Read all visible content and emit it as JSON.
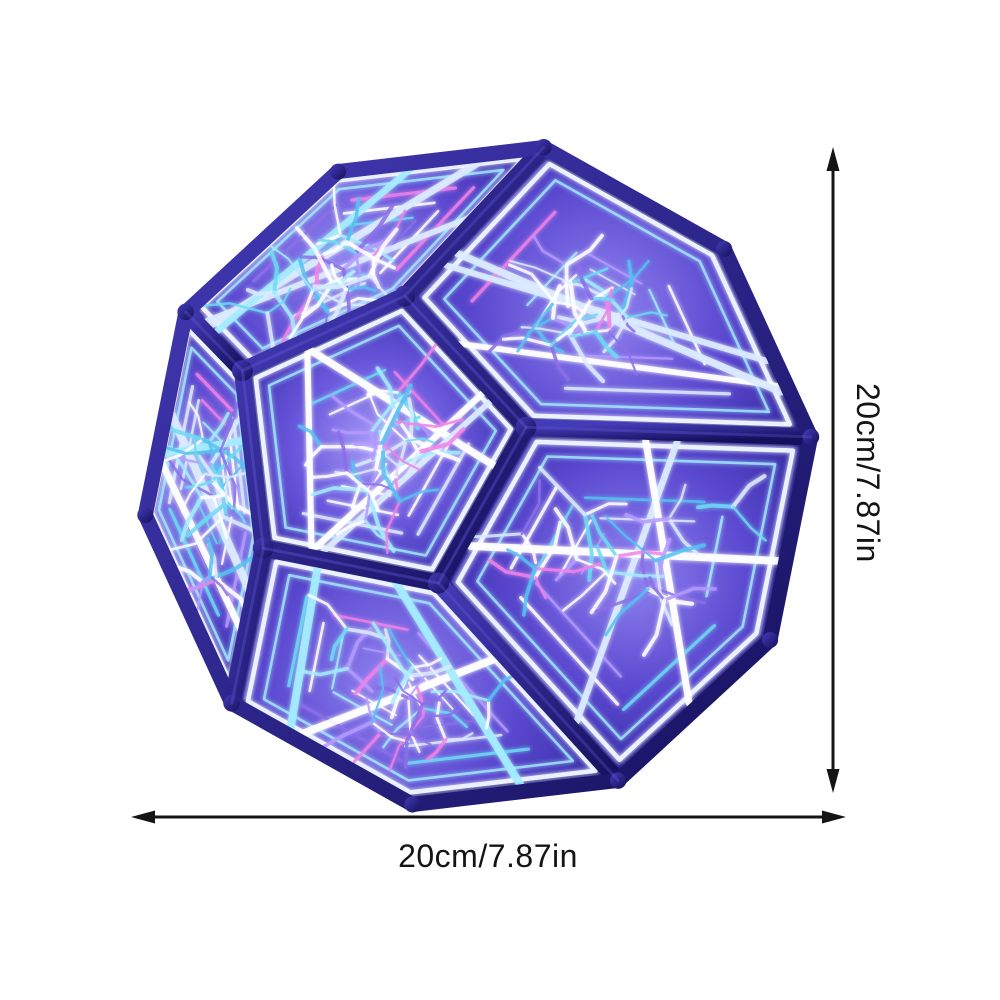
{
  "annotations": {
    "height": {
      "label": "20cm/7.87in",
      "icon": "double-headed-vertical-arrow"
    },
    "width": {
      "label": "20cm/7.87in",
      "icon": "double-headed-horizontal-arrow"
    },
    "arrow_color": "#141414",
    "label_color": "#141414"
  },
  "product": {
    "frame_color_light": "#443bb8",
    "frame_color_dark": "#15105c",
    "frame_highlight": "#6a5fe0",
    "face_gradient": {
      "front": [
        "#a79af7",
        "#6a58dd",
        "#3d30ad"
      ],
      "ring": [
        "#9183f0",
        "#5a48cf",
        "#33289e"
      ]
    },
    "neon_palette": [
      "#ffffff",
      "#dcebff",
      "#a5ecff",
      "#6fd9f2",
      "#b49bff",
      "#8b6fe8",
      "#ef82e8",
      "#58c0f0"
    ]
  },
  "background_color": "#ffffff"
}
